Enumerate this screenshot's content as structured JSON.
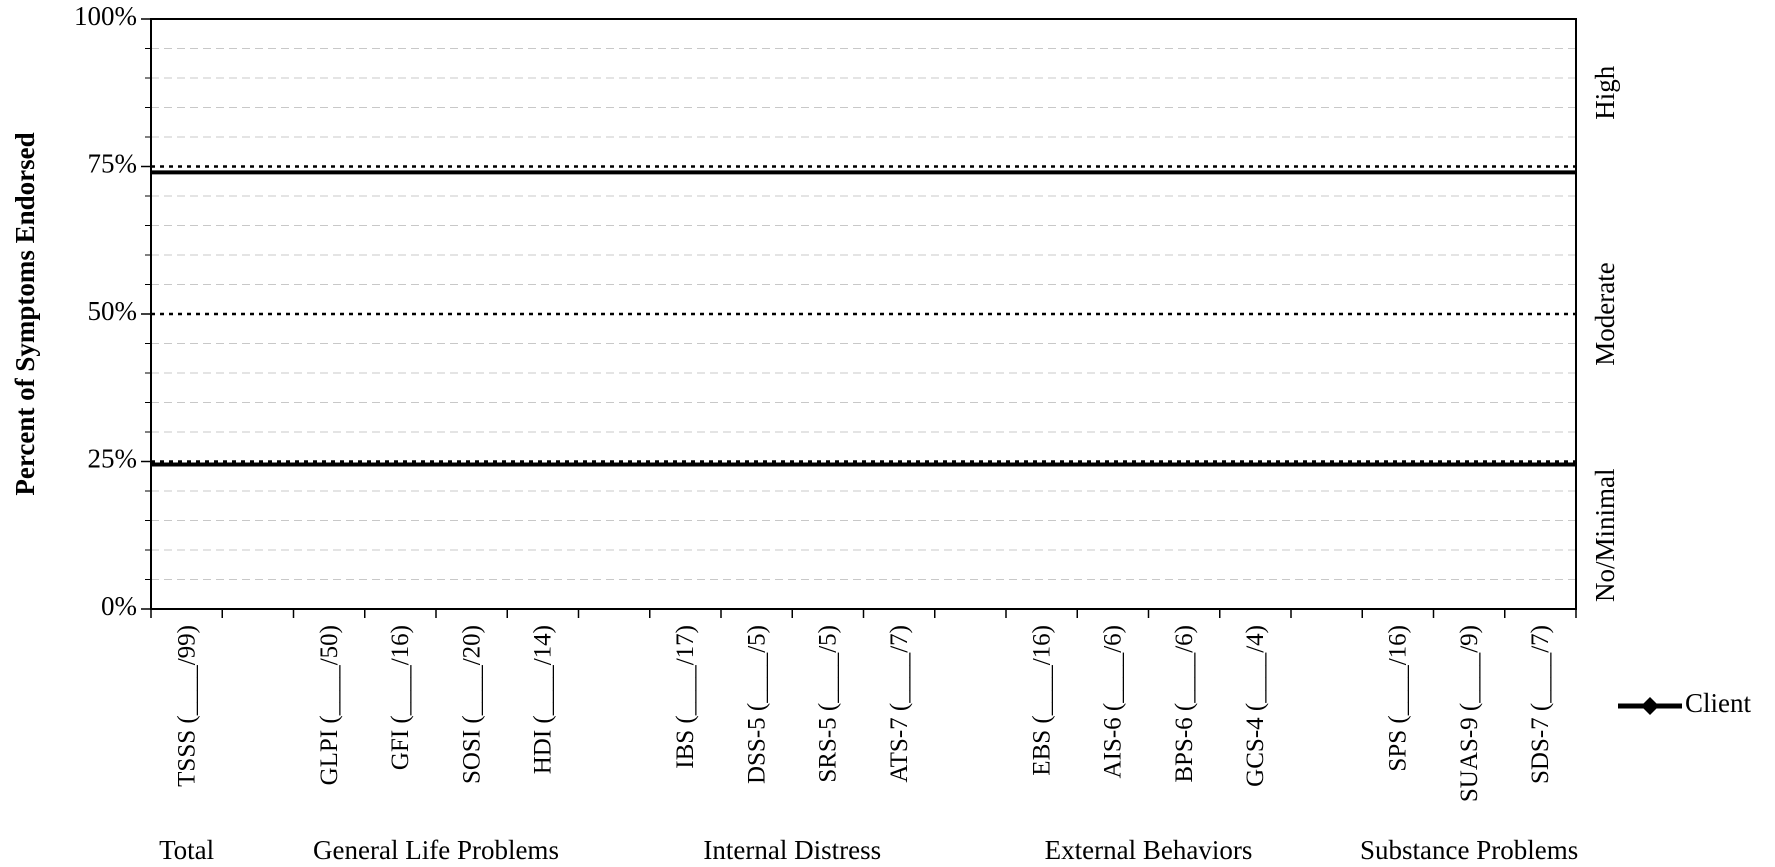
{
  "chart_data": {
    "type": "line",
    "ylabel": "Percent of Symptoms Endorsed",
    "categories": [
      "TSSS (____/99)",
      null,
      "GLPI (____/50)",
      "GFI (____/16)",
      "SOSI (____/20)",
      "HDI (____/14)",
      null,
      "IBS (____/17)",
      "DSS-5 (____/5)",
      "SRS-5 (____/5)",
      "ATS-7 (____/7)",
      null,
      "EBS (____/16)",
      "AIS-6 (____/6)",
      "BPS-6 (____/6)",
      "GCS-4 (____/4)",
      null,
      "SPS (____/16)",
      "SUAS-9 (____/9)",
      "SDS-7 (____/7)"
    ],
    "groups": [
      "Total",
      "General Life Problems",
      "Internal Distress",
      "External Behaviors",
      "Substance Problems"
    ],
    "series": [
      {
        "name": "Client",
        "color": "#000000",
        "marker": "diamond",
        "values": [
          null,
          null,
          null,
          null,
          null,
          null,
          null,
          null,
          null,
          null,
          null,
          null,
          null,
          null,
          null,
          null,
          null,
          null,
          null,
          null
        ]
      }
    ],
    "ylim": [
      0,
      100
    ],
    "yticks": [
      {
        "value": 0,
        "label": "0%"
      },
      {
        "value": 25,
        "label": "25%"
      },
      {
        "value": 50,
        "label": "50%"
      },
      {
        "value": 75,
        "label": "75%"
      },
      {
        "value": 100,
        "label": "100%"
      }
    ],
    "minor_yticks": [
      5,
      10,
      15,
      20,
      30,
      35,
      40,
      45,
      55,
      60,
      65,
      70,
      80,
      85,
      90,
      95
    ],
    "reference_lines": [
      {
        "value": 24.5,
        "style": "solid"
      },
      {
        "value": 25,
        "style": "dotted"
      },
      {
        "value": 50,
        "style": "dotted"
      },
      {
        "value": 74,
        "style": "solid"
      },
      {
        "value": 75,
        "style": "dotted"
      }
    ],
    "bands": [
      {
        "label": "No/Minimal",
        "range": [
          0,
          25
        ]
      },
      {
        "label": "Moderate",
        "range": [
          25,
          75
        ]
      },
      {
        "label": "High",
        "range": [
          75,
          100
        ]
      }
    ],
    "legend": "right"
  }
}
